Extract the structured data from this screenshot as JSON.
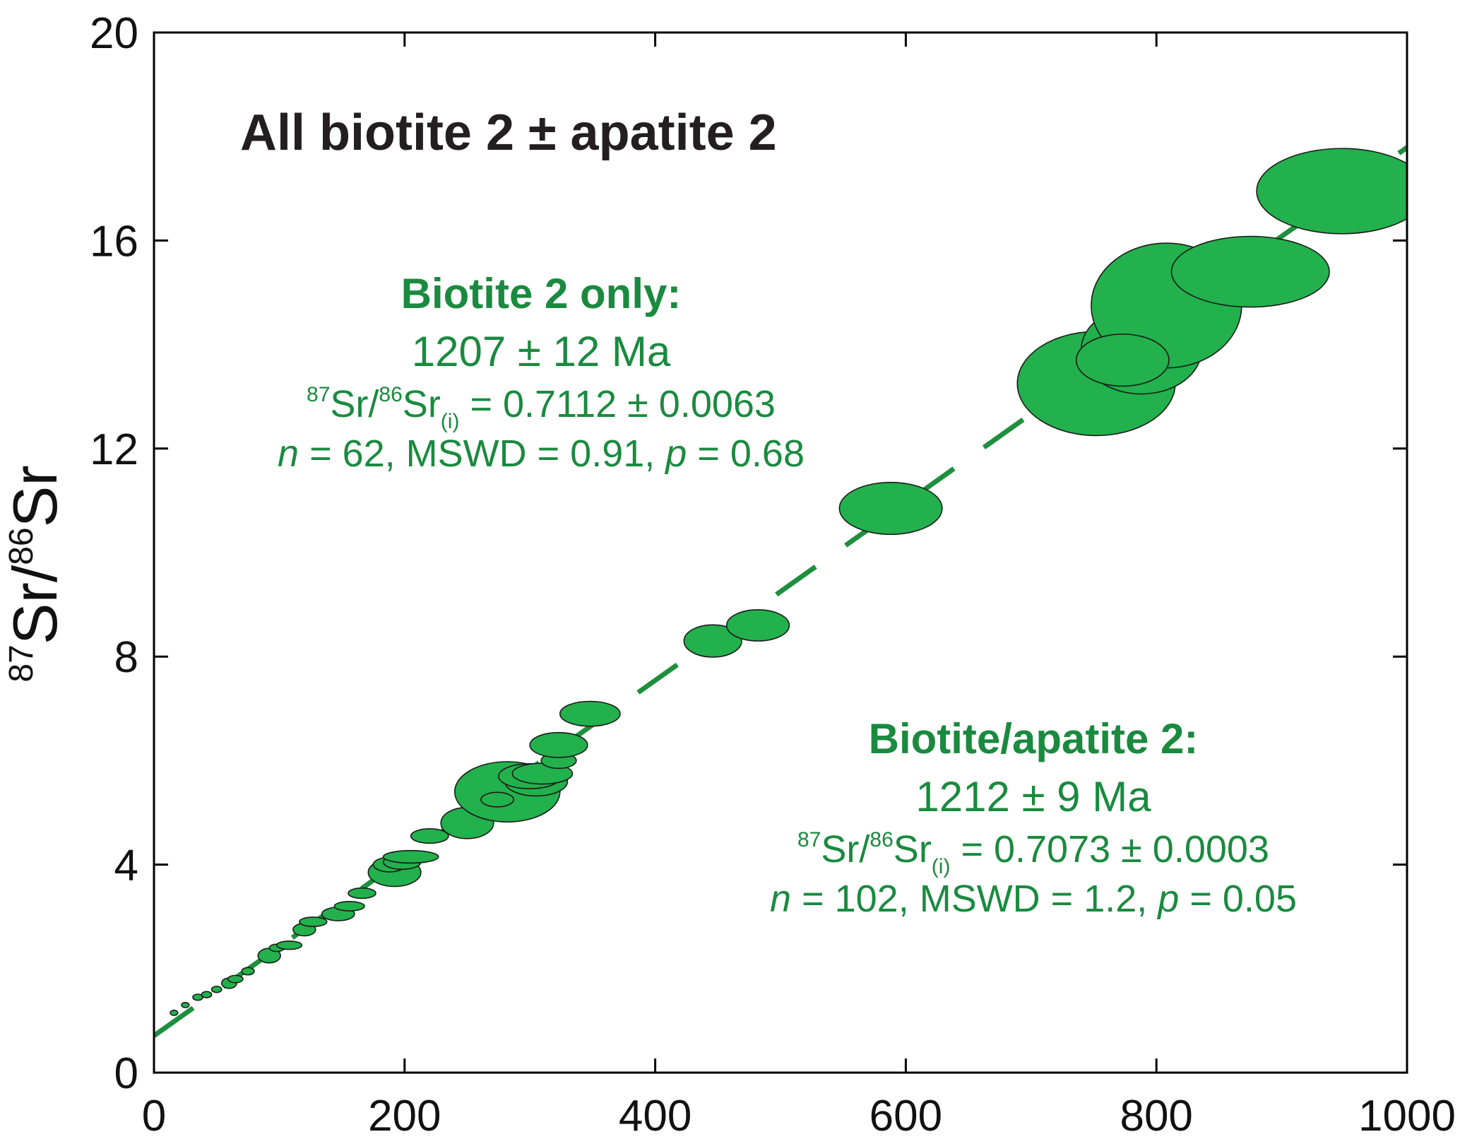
{
  "chart_data": {
    "type": "scatter",
    "title": "All biotite 2 ± apatite 2",
    "xlabel": "",
    "ylabel": {
      "sup1": "87",
      "main1": "Sr/",
      "sup2": "86",
      "main2": "Sr"
    },
    "xlim": [
      0,
      1000
    ],
    "ylim": [
      0,
      20
    ],
    "xticks": [
      "0",
      "200",
      "400",
      "600",
      "800",
      "1000"
    ],
    "yticks": [
      "0",
      "4",
      "8",
      "12",
      "16",
      "20"
    ],
    "grid": false,
    "colors": {
      "ellipse": "#22b14c",
      "line": "#1e8f3e",
      "text": "#1a8a3f",
      "axis": "#000000"
    },
    "series": [
      {
        "type": "error-ellipses",
        "points": [
          {
            "x": 16,
            "y": 1.15,
            "rx": 3,
            "ry": 0.05
          },
          {
            "x": 25,
            "y": 1.3,
            "rx": 3,
            "ry": 0.05
          },
          {
            "x": 35,
            "y": 1.45,
            "rx": 4,
            "ry": 0.06
          },
          {
            "x": 42,
            "y": 1.5,
            "rx": 4,
            "ry": 0.06
          },
          {
            "x": 50,
            "y": 1.6,
            "rx": 4,
            "ry": 0.06
          },
          {
            "x": 60,
            "y": 1.72,
            "rx": 6,
            "ry": 0.1
          },
          {
            "x": 65,
            "y": 1.8,
            "rx": 6,
            "ry": 0.07
          },
          {
            "x": 75,
            "y": 1.95,
            "rx": 5,
            "ry": 0.07
          },
          {
            "x": 92,
            "y": 2.25,
            "rx": 9,
            "ry": 0.14
          },
          {
            "x": 98,
            "y": 2.4,
            "rx": 6,
            "ry": 0.07
          },
          {
            "x": 108,
            "y": 2.45,
            "rx": 10,
            "ry": 0.08
          },
          {
            "x": 120,
            "y": 2.75,
            "rx": 9,
            "ry": 0.12
          },
          {
            "x": 127,
            "y": 2.9,
            "rx": 11,
            "ry": 0.09
          },
          {
            "x": 147,
            "y": 3.05,
            "rx": 13,
            "ry": 0.13
          },
          {
            "x": 156,
            "y": 3.2,
            "rx": 12,
            "ry": 0.09
          },
          {
            "x": 166,
            "y": 3.45,
            "rx": 11,
            "ry": 0.1
          },
          {
            "x": 192,
            "y": 3.85,
            "rx": 21,
            "ry": 0.27
          },
          {
            "x": 188,
            "y": 4.0,
            "rx": 13,
            "ry": 0.14
          },
          {
            "x": 198,
            "y": 4.05,
            "rx": 15,
            "ry": 0.14
          },
          {
            "x": 205,
            "y": 4.15,
            "rx": 22,
            "ry": 0.12
          },
          {
            "x": 220,
            "y": 4.55,
            "rx": 15,
            "ry": 0.14
          },
          {
            "x": 250,
            "y": 4.8,
            "rx": 21,
            "ry": 0.3
          },
          {
            "x": 282,
            "y": 5.4,
            "rx": 42,
            "ry": 0.58
          },
          {
            "x": 274,
            "y": 5.25,
            "rx": 13,
            "ry": 0.14
          },
          {
            "x": 305,
            "y": 5.6,
            "rx": 25,
            "ry": 0.28
          },
          {
            "x": 300,
            "y": 5.7,
            "rx": 25,
            "ry": 0.24
          },
          {
            "x": 310,
            "y": 5.75,
            "rx": 24,
            "ry": 0.2
          },
          {
            "x": 323,
            "y": 6.0,
            "rx": 14,
            "ry": 0.15
          },
          {
            "x": 323,
            "y": 6.3,
            "rx": 23,
            "ry": 0.24
          },
          {
            "x": 348,
            "y": 6.9,
            "rx": 24,
            "ry": 0.24
          },
          {
            "x": 446,
            "y": 8.3,
            "rx": 23,
            "ry": 0.31
          },
          {
            "x": 482,
            "y": 8.6,
            "rx": 25,
            "ry": 0.3
          },
          {
            "x": 588,
            "y": 10.85,
            "rx": 41,
            "ry": 0.5
          },
          {
            "x": 752,
            "y": 13.25,
            "rx": 63,
            "ry": 1.0
          },
          {
            "x": 788,
            "y": 13.9,
            "rx": 48,
            "ry": 0.85
          },
          {
            "x": 808,
            "y": 14.75,
            "rx": 60,
            "ry": 1.2
          },
          {
            "x": 773,
            "y": 13.7,
            "rx": 37,
            "ry": 0.5
          },
          {
            "x": 875,
            "y": 15.4,
            "rx": 63,
            "ry": 0.68
          },
          {
            "x": 948,
            "y": 16.95,
            "rx": 68,
            "ry": 0.82
          }
        ]
      },
      {
        "type": "isochron-line",
        "x": [
          0,
          1000
        ],
        "y": [
          0.71,
          17.79
        ]
      }
    ],
    "annotations": {
      "biotite": {
        "title": "Biotite 2 only:",
        "age": "1207 ± 12 Ma",
        "sup1": "87",
        "sr1": "Sr/",
        "sup2": "86",
        "sr2": "Sr",
        "sub": "(i)",
        "ratio": " = 0.7112 ± 0.0063",
        "n": "n",
        "stats": " = 62, MSWD = 0.91, ",
        "p": "p",
        "pval": " = 0.68"
      },
      "apatite": {
        "title": "Biotite/apatite 2:",
        "age": "1212 ± 9 Ma",
        "sup1": "87",
        "sr1": "Sr/",
        "sup2": "86",
        "sr2": "Sr",
        "sub": "(i)",
        "ratio": " = 0.7073 ± 0.0003",
        "n": "n",
        "stats": " = 102, MSWD = 1.2, ",
        "p": "p",
        "pval": " = 0.05"
      }
    }
  }
}
